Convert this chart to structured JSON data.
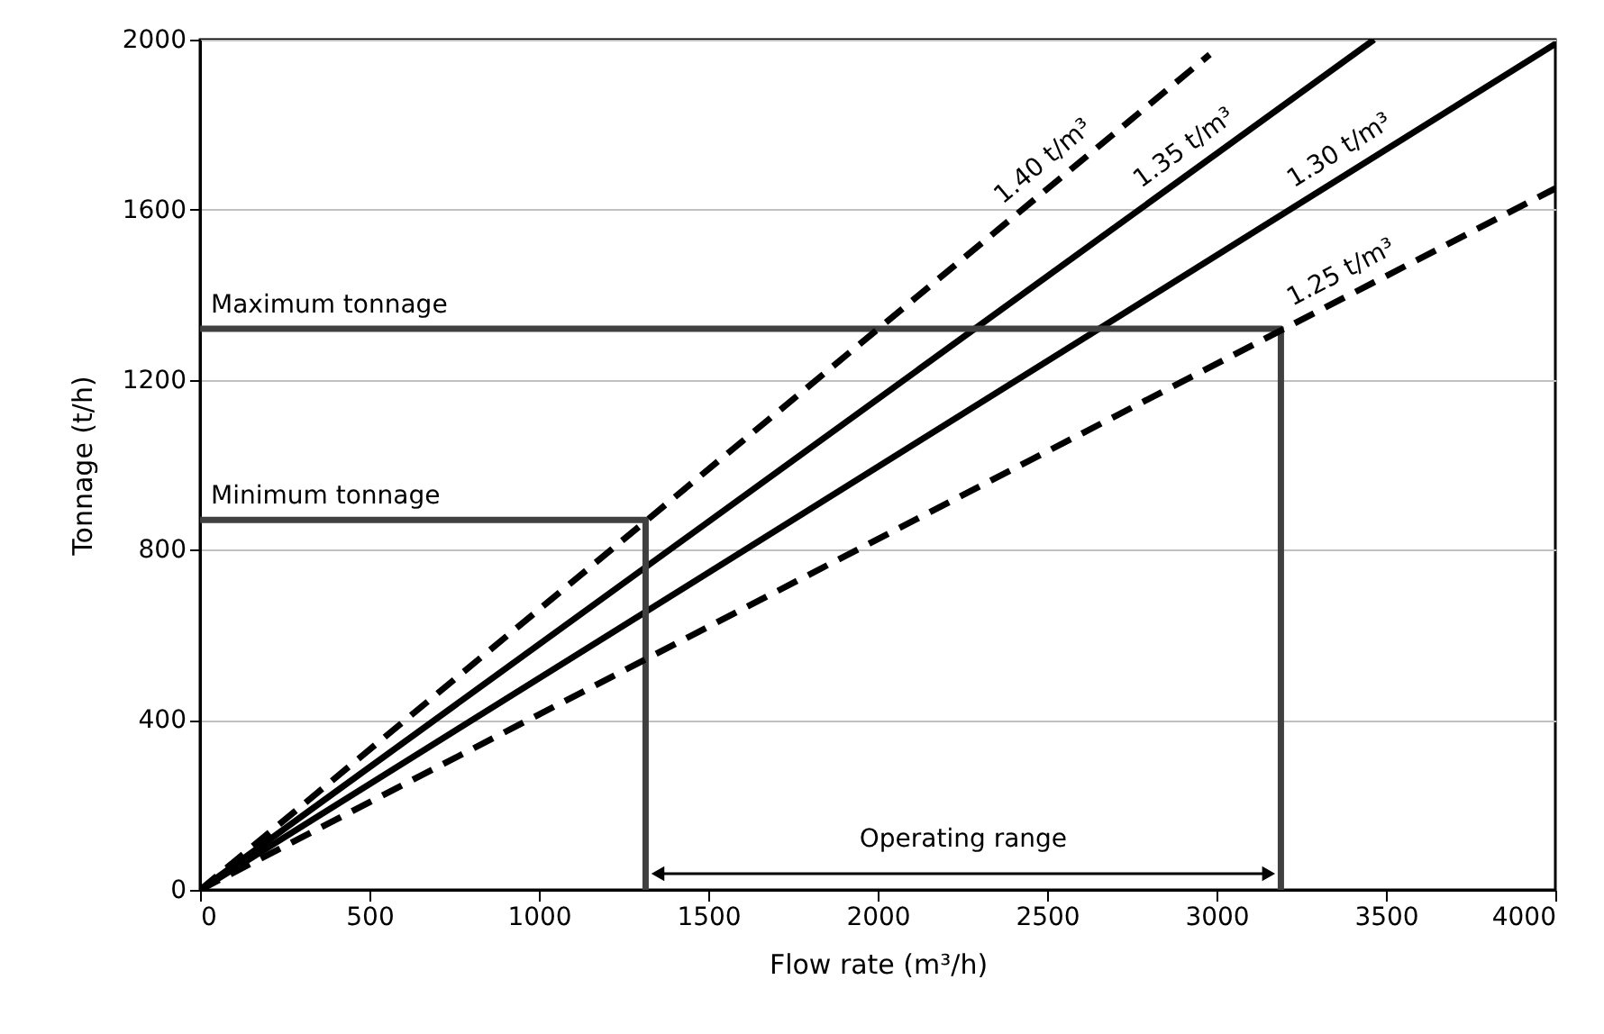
{
  "chart_data": {
    "type": "line",
    "xlabel": "Flow rate (m³/h)",
    "ylabel": "Tonnage (t/h)",
    "xlim": [
      0,
      4000
    ],
    "xticks": [
      0,
      500,
      1000,
      1500,
      2000,
      2500,
      3000,
      3500,
      4000
    ],
    "ylim": [
      0,
      2000
    ],
    "yticks": [
      0,
      400,
      800,
      1200,
      1600,
      2000
    ],
    "grid": "y",
    "legend": false,
    "series": [
      {
        "name": "1.40 t/m³",
        "color": "#000000",
        "line_style": "dashed",
        "x": [
          0,
          2980
        ],
        "values": [
          0,
          1965
        ]
      },
      {
        "name": "1.35 t/m³",
        "color": "#000000",
        "line_style": "solid",
        "x": [
          0,
          3465
        ],
        "values": [
          0,
          2000
        ]
      },
      {
        "name": "1.30 t/m³",
        "color": "#000000",
        "line_style": "solid",
        "x": [
          0,
          4000
        ],
        "values": [
          0,
          1990
        ]
      },
      {
        "name": "1.25 t/m³",
        "color": "#000000",
        "line_style": "dashed",
        "x": [
          0,
          4000
        ],
        "values": [
          0,
          1650
        ]
      },
      {
        "name": "Minimum tonnage",
        "color": "#404040",
        "line_style": "solid",
        "x": [
          0,
          1315,
          1315
        ],
        "values": [
          870,
          870,
          0
        ]
      },
      {
        "name": "Maximum tonnage",
        "color": "#404040",
        "line_style": "solid",
        "x": [
          0,
          3190,
          3190
        ],
        "values": [
          1320,
          1320,
          0
        ]
      }
    ],
    "annotations": [
      "Operating range"
    ]
  }
}
